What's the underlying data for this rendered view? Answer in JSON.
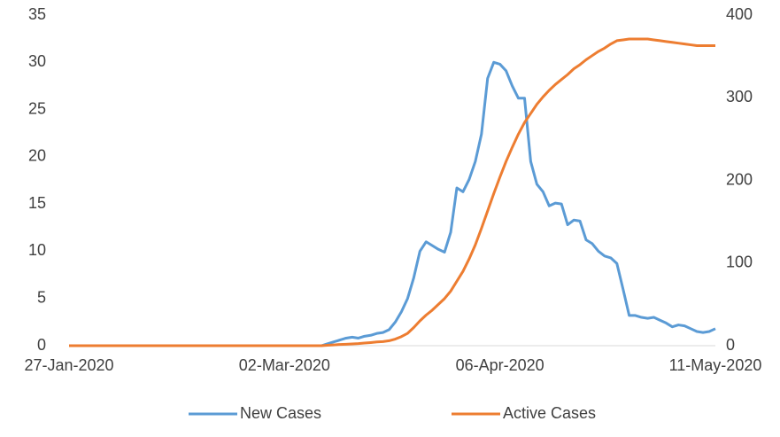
{
  "chart_data": {
    "type": "line",
    "categories": [
      "27-Jan-2020",
      null,
      null,
      null,
      null,
      null,
      null,
      null,
      null,
      null,
      null,
      null,
      null,
      null,
      null,
      null,
      null,
      null,
      null,
      null,
      null,
      null,
      null,
      null,
      null,
      null,
      null,
      null,
      null,
      null,
      null,
      null,
      null,
      null,
      null,
      "02-Mar-2020",
      null,
      null,
      null,
      null,
      null,
      null,
      null,
      null,
      null,
      null,
      null,
      null,
      null,
      null,
      null,
      null,
      null,
      null,
      null,
      null,
      null,
      null,
      null,
      null,
      null,
      null,
      null,
      null,
      null,
      null,
      null,
      null,
      null,
      null,
      "06-Apr-2020",
      null,
      null,
      null,
      null,
      null,
      null,
      null,
      null,
      null,
      null,
      null,
      null,
      null,
      null,
      null,
      null,
      null,
      null,
      null,
      null,
      null,
      null,
      null,
      null,
      null,
      null,
      null,
      null,
      null,
      null,
      null,
      null,
      null,
      null,
      "11-May-2020"
    ],
    "series": [
      {
        "name": "New Cases",
        "color": "#5b9bd5",
        "values": [
          0,
          0,
          0,
          0,
          0,
          0,
          0,
          0,
          0,
          0,
          0,
          0,
          0,
          0,
          0,
          0,
          0,
          0,
          0,
          0,
          0,
          0,
          0,
          0,
          0,
          0,
          0,
          0,
          0,
          0,
          0,
          0,
          0,
          0,
          0,
          0,
          0,
          0,
          0,
          0,
          0,
          0,
          0.2,
          0.4,
          0.6,
          0.8,
          0.9,
          0.8,
          1.0,
          1.1,
          1.3,
          1.4,
          1.7,
          2.5,
          3.6,
          5.0,
          7.2,
          10.0,
          11.0,
          10.6,
          10.2,
          9.9,
          12.0,
          16.7,
          16.3,
          17.6,
          19.5,
          22.4,
          28.3,
          30.0,
          29.8,
          29.1,
          27.5,
          26.2,
          26.2,
          19.5,
          17.1,
          16.3,
          14.8,
          15.1,
          15.0,
          12.8,
          13.3,
          13.2,
          11.2,
          10.8,
          10.0,
          9.5,
          9.3,
          8.7,
          6.0,
          3.2,
          3.2,
          3.0,
          2.9,
          3.0,
          2.7,
          2.4,
          2.0,
          2.2,
          2.1,
          1.8,
          1.5,
          1.4,
          1.5,
          1.8
        ]
      },
      {
        "name": "Active Cases",
        "color": "#ed7d31",
        "axis": "y2",
        "values": [
          0,
          0,
          0,
          0,
          0,
          0,
          0,
          0,
          0,
          0,
          0,
          0,
          0,
          0,
          0,
          0,
          0,
          0,
          0,
          0,
          0,
          0,
          0,
          0,
          0,
          0,
          0,
          0,
          0,
          0,
          0,
          0,
          0,
          0,
          0,
          0,
          0,
          0,
          0,
          0,
          0,
          0,
          0.5,
          1,
          1.5,
          1.8,
          2.2,
          2.6,
          3.2,
          3.8,
          4.5,
          5,
          6,
          8,
          11,
          15,
          22,
          30,
          37,
          43,
          50,
          57,
          66,
          78,
          90,
          105,
          122,
          142,
          163,
          184,
          204,
          223,
          240,
          256,
          270,
          281,
          292,
          301,
          309,
          316,
          322,
          328,
          335,
          340,
          346,
          351,
          356,
          360,
          365,
          369,
          370,
          371,
          371,
          371,
          371,
          370,
          369,
          368,
          367,
          366,
          365,
          364,
          363,
          363,
          363,
          363
        ]
      }
    ],
    "ylim": [
      0,
      35
    ],
    "yticks": [
      0,
      5,
      10,
      15,
      20,
      25,
      30,
      35
    ],
    "y2lim": [
      0,
      400
    ],
    "y2ticks": [
      0,
      100,
      200,
      300,
      400
    ],
    "legend": "bottom"
  }
}
